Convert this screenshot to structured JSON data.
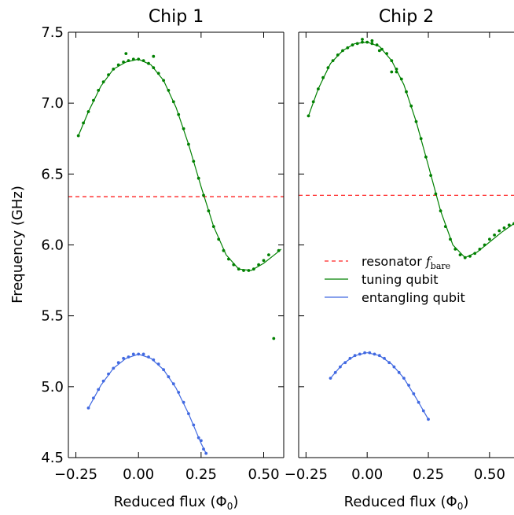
{
  "figure": {
    "ylabel": "Frequency (GHz)",
    "legend": {
      "placement": "center-right of second panel",
      "entries": [
        {
          "label": "resonator",
          "math": "f",
          "sub": "bare",
          "style": "dashed",
          "color": "#ff2020"
        },
        {
          "label": "tuning qubit",
          "style": "solid",
          "color": "#008000"
        },
        {
          "label": "entangling qubit",
          "style": "solid",
          "color": "#4169e1"
        }
      ]
    }
  },
  "chart_data": [
    {
      "type": "scatter",
      "title": "Chip 1",
      "xlabel": "Reduced flux (Φ0)",
      "xlim": [
        -0.28,
        0.58
      ],
      "ylim": [
        4.5,
        7.5
      ],
      "xticks": [
        -0.25,
        0.0,
        0.25,
        0.5
      ],
      "xtick_labels": [
        "−0.25",
        "0.00",
        "0.25",
        "0.50"
      ],
      "yticks": [
        4.5,
        5.0,
        5.5,
        6.0,
        6.5,
        7.0,
        7.5
      ],
      "ytick_labels": [
        "4.5",
        "5.0",
        "5.5",
        "6.0",
        "6.5",
        "7.0",
        "7.5"
      ],
      "resonator_f_bare": 6.34,
      "series": [
        {
          "name": "tuning qubit",
          "color": "#008000",
          "x": [
            -0.24,
            -0.22,
            -0.2,
            -0.18,
            -0.16,
            -0.14,
            -0.12,
            -0.1,
            -0.08,
            -0.06,
            -0.04,
            -0.02,
            0.0,
            0.02,
            0.04,
            0.06,
            0.08,
            0.1,
            0.12,
            0.14,
            0.16,
            0.18,
            0.2,
            0.22,
            0.24,
            0.26,
            0.28,
            0.3,
            0.32,
            0.34,
            0.36,
            0.38,
            0.4,
            0.42,
            0.44,
            0.46,
            0.48,
            0.5,
            0.52,
            0.54,
            0.56,
            -0.05,
            0.06
          ],
          "y": [
            6.77,
            6.86,
            6.94,
            7.02,
            7.09,
            7.15,
            7.2,
            7.24,
            7.27,
            7.29,
            7.3,
            7.31,
            7.31,
            7.3,
            7.28,
            7.25,
            7.21,
            7.16,
            7.09,
            7.01,
            6.92,
            6.82,
            6.71,
            6.59,
            6.47,
            6.35,
            6.24,
            6.13,
            6.04,
            5.96,
            5.9,
            5.86,
            5.83,
            5.82,
            5.82,
            5.83,
            5.86,
            5.89,
            5.93,
            5.34,
            5.96,
            7.35,
            7.33
          ]
        },
        {
          "name": "entangling qubit",
          "color": "#4169e1",
          "x": [
            -0.2,
            -0.18,
            -0.16,
            -0.14,
            -0.12,
            -0.1,
            -0.08,
            -0.06,
            -0.04,
            -0.02,
            0.0,
            0.02,
            0.04,
            0.06,
            0.08,
            0.1,
            0.12,
            0.14,
            0.16,
            0.18,
            0.2,
            0.22,
            0.24,
            0.25,
            0.26,
            0.27
          ],
          "y": [
            4.85,
            4.92,
            4.98,
            5.04,
            5.09,
            5.13,
            5.17,
            5.2,
            5.21,
            5.23,
            5.23,
            5.23,
            5.21,
            5.19,
            5.16,
            5.12,
            5.07,
            5.02,
            4.96,
            4.89,
            4.81,
            4.73,
            4.64,
            4.62,
            4.56,
            4.53
          ]
        }
      ],
      "fits": [
        {
          "name": "tuning qubit",
          "color": "#008000",
          "x": [
            -0.24,
            -0.2,
            -0.15,
            -0.1,
            -0.05,
            0.0,
            0.05,
            0.1,
            0.15,
            0.2,
            0.25,
            0.3,
            0.35,
            0.4,
            0.45,
            0.5,
            0.55,
            0.57
          ],
          "y": [
            6.77,
            6.94,
            7.12,
            7.24,
            7.29,
            7.31,
            7.27,
            7.16,
            6.97,
            6.71,
            6.41,
            6.13,
            5.93,
            5.83,
            5.82,
            5.87,
            5.94,
            5.97
          ]
        },
        {
          "name": "entangling qubit",
          "color": "#4169e1",
          "x": [
            -0.2,
            -0.15,
            -0.1,
            -0.05,
            0.0,
            0.05,
            0.1,
            0.15,
            0.2,
            0.25,
            0.27
          ],
          "y": [
            4.85,
            5.01,
            5.13,
            5.2,
            5.23,
            5.2,
            5.12,
            4.99,
            4.81,
            4.6,
            4.53
          ]
        }
      ]
    },
    {
      "type": "scatter",
      "title": "Chip 2",
      "xlabel": "Reduced flux (Φ0)",
      "xlim": [
        -0.28,
        0.6
      ],
      "ylim": [
        4.5,
        7.5
      ],
      "xticks": [
        -0.25,
        0.0,
        0.25,
        0.5
      ],
      "xtick_labels": [
        "−0.25",
        "0.00",
        "0.25",
        "0.50"
      ],
      "yticks": [
        4.5,
        5.0,
        5.5,
        6.0,
        6.5,
        7.0,
        7.5
      ],
      "resonator_f_bare": 6.35,
      "series": [
        {
          "name": "tuning qubit",
          "color": "#008000",
          "x": [
            -0.24,
            -0.22,
            -0.2,
            -0.18,
            -0.16,
            -0.14,
            -0.12,
            -0.1,
            -0.08,
            -0.06,
            -0.04,
            -0.02,
            0.0,
            0.02,
            0.04,
            0.06,
            0.08,
            0.1,
            0.12,
            0.14,
            0.16,
            0.18,
            0.2,
            0.22,
            0.24,
            0.26,
            0.28,
            0.3,
            0.32,
            0.34,
            0.36,
            0.38,
            0.4,
            0.42,
            0.44,
            0.46,
            0.48,
            0.5,
            0.52,
            0.54,
            0.56,
            0.58,
            0.6,
            -0.02,
            0.02,
            0.05,
            0.1,
            0.12
          ],
          "y": [
            6.91,
            7.01,
            7.1,
            7.18,
            7.25,
            7.3,
            7.34,
            7.37,
            7.39,
            7.41,
            7.42,
            7.43,
            7.43,
            7.42,
            7.41,
            7.38,
            7.35,
            7.3,
            7.24,
            7.17,
            7.08,
            6.98,
            6.87,
            6.75,
            6.62,
            6.49,
            6.36,
            6.24,
            6.13,
            6.04,
            5.97,
            5.93,
            5.91,
            5.92,
            5.94,
            5.97,
            6.0,
            6.04,
            6.07,
            6.1,
            6.12,
            6.14,
            6.15,
            7.45,
            7.44,
            7.37,
            7.22,
            7.22
          ]
        },
        {
          "name": "entangling qubit",
          "color": "#4169e1",
          "x": [
            -0.15,
            -0.13,
            -0.11,
            -0.09,
            -0.07,
            -0.05,
            -0.03,
            -0.01,
            0.01,
            0.03,
            0.05,
            0.07,
            0.09,
            0.11,
            0.13,
            0.15,
            0.17,
            0.19,
            0.21,
            0.23,
            0.25
          ],
          "y": [
            5.06,
            5.1,
            5.14,
            5.17,
            5.2,
            5.22,
            5.23,
            5.24,
            5.24,
            5.23,
            5.22,
            5.2,
            5.17,
            5.14,
            5.1,
            5.06,
            5.01,
            4.95,
            4.89,
            4.83,
            4.77
          ]
        }
      ],
      "fits": [
        {
          "name": "tuning qubit",
          "color": "#008000",
          "x": [
            -0.24,
            -0.2,
            -0.15,
            -0.1,
            -0.05,
            0.0,
            0.05,
            0.1,
            0.15,
            0.2,
            0.25,
            0.3,
            0.35,
            0.4,
            0.45,
            0.5,
            0.55,
            0.6
          ],
          "y": [
            6.91,
            7.1,
            7.28,
            7.37,
            7.42,
            7.43,
            7.4,
            7.3,
            7.13,
            6.87,
            6.56,
            6.24,
            6.0,
            5.91,
            5.95,
            6.02,
            6.09,
            6.15
          ]
        },
        {
          "name": "entangling qubit",
          "color": "#4169e1",
          "x": [
            -0.15,
            -0.1,
            -0.05,
            0.0,
            0.05,
            0.1,
            0.15,
            0.2,
            0.25
          ],
          "y": [
            5.06,
            5.16,
            5.22,
            5.24,
            5.22,
            5.16,
            5.06,
            4.92,
            4.77
          ]
        }
      ]
    }
  ]
}
